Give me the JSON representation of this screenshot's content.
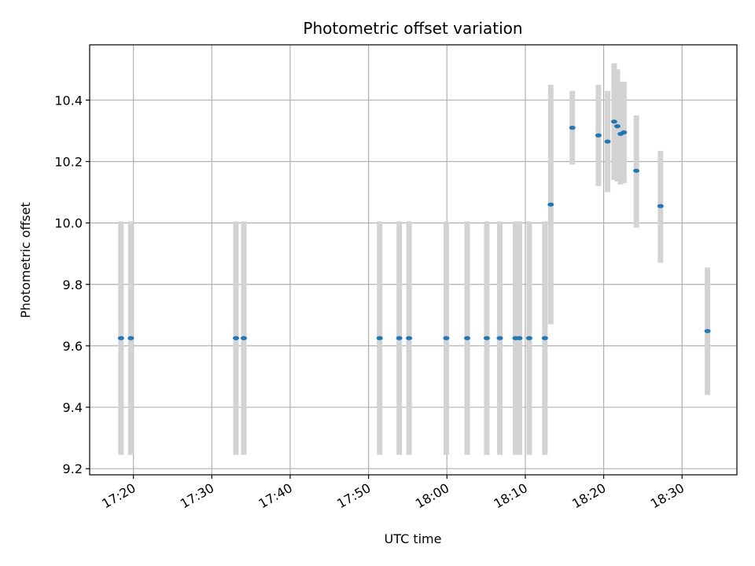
{
  "chart_data": {
    "type": "scatter",
    "title": "Photometric offset variation",
    "xlabel": "UTC time",
    "ylabel": "Photometric offset",
    "x_format": "HH:MM",
    "xlim": [
      "17:14:25",
      "18:37:00"
    ],
    "ylim": [
      9.18,
      10.58
    ],
    "x_ticks": [
      "17:20",
      "17:30",
      "17:40",
      "17:50",
      "18:00",
      "18:10",
      "18:20",
      "18:30"
    ],
    "y_ticks": [
      "9.2",
      "9.4",
      "9.6",
      "9.8",
      "10.0",
      "10.2",
      "10.4"
    ],
    "grid": true,
    "marker_color": "#1f77b4",
    "errorbar_color": "#d3d3d3",
    "points": [
      {
        "t": "17:18:25",
        "y": 9.625,
        "lo": 9.245,
        "hi": 10.005
      },
      {
        "t": "17:19:40",
        "y": 9.625,
        "lo": 9.245,
        "hi": 10.005
      },
      {
        "t": "17:33:05",
        "y": 9.625,
        "lo": 9.245,
        "hi": 10.005
      },
      {
        "t": "17:34:05",
        "y": 9.625,
        "lo": 9.245,
        "hi": 10.005
      },
      {
        "t": "17:51:25",
        "y": 9.625,
        "lo": 9.245,
        "hi": 10.005
      },
      {
        "t": "17:53:55",
        "y": 9.625,
        "lo": 9.245,
        "hi": 10.005
      },
      {
        "t": "17:55:10",
        "y": 9.625,
        "lo": 9.245,
        "hi": 10.005
      },
      {
        "t": "17:59:55",
        "y": 9.625,
        "lo": 9.245,
        "hi": 10.005
      },
      {
        "t": "18:02:35",
        "y": 9.625,
        "lo": 9.245,
        "hi": 10.005
      },
      {
        "t": "18:05:05",
        "y": 9.625,
        "lo": 9.245,
        "hi": 10.005
      },
      {
        "t": "18:06:45",
        "y": 9.625,
        "lo": 9.245,
        "hi": 10.005
      },
      {
        "t": "18:08:45",
        "y": 9.625,
        "lo": 9.245,
        "hi": 10.005
      },
      {
        "t": "18:09:15",
        "y": 9.625,
        "lo": 9.245,
        "hi": 10.005
      },
      {
        "t": "18:10:30",
        "y": 9.625,
        "lo": 9.245,
        "hi": 10.005
      },
      {
        "t": "18:12:30",
        "y": 9.625,
        "lo": 9.245,
        "hi": 10.005
      },
      {
        "t": "18:13:15",
        "y": 10.06,
        "lo": 9.67,
        "hi": 10.45
      },
      {
        "t": "18:16:00",
        "y": 10.31,
        "lo": 10.19,
        "hi": 10.43
      },
      {
        "t": "18:19:20",
        "y": 10.285,
        "lo": 10.12,
        "hi": 10.45
      },
      {
        "t": "18:20:30",
        "y": 10.265,
        "lo": 10.1,
        "hi": 10.43
      },
      {
        "t": "18:21:20",
        "y": 10.33,
        "lo": 10.14,
        "hi": 10.52
      },
      {
        "t": "18:21:45",
        "y": 10.315,
        "lo": 10.135,
        "hi": 10.5
      },
      {
        "t": "18:22:10",
        "y": 10.29,
        "lo": 10.125,
        "hi": 10.46
      },
      {
        "t": "18:22:35",
        "y": 10.295,
        "lo": 10.13,
        "hi": 10.46
      },
      {
        "t": "18:24:10",
        "y": 10.17,
        "lo": 9.985,
        "hi": 10.35
      },
      {
        "t": "18:27:15",
        "y": 10.055,
        "lo": 9.87,
        "hi": 10.235
      },
      {
        "t": "18:33:15",
        "y": 9.648,
        "lo": 9.44,
        "hi": 9.855
      }
    ]
  }
}
